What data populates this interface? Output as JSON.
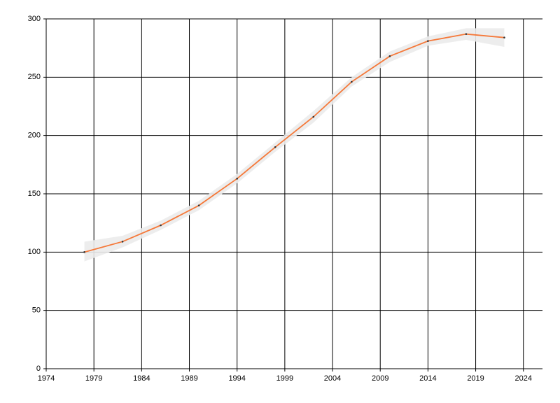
{
  "chart_data": {
    "type": "line",
    "x": [
      1978,
      1982,
      1986,
      1990,
      1994,
      1998,
      2002,
      2006,
      2010,
      2014,
      2018,
      2022
    ],
    "values": [
      100,
      109,
      123,
      140,
      163,
      190,
      216,
      246,
      268,
      281,
      287,
      284
    ],
    "color": "#f5793a",
    "band": {
      "lower": [
        92,
        104,
        119,
        136,
        159,
        186,
        211,
        242,
        263,
        277,
        282,
        276
      ],
      "upper": [
        109,
        114,
        127,
        144,
        167,
        194,
        221,
        250,
        272,
        285,
        292,
        292
      ],
      "color": "#ebebeb"
    },
    "xlim": [
      1974,
      2026
    ],
    "xticks": [
      1974,
      1979,
      1984,
      1989,
      1994,
      1999,
      2004,
      2009,
      2014,
      2019,
      2024
    ],
    "ylim": [
      0,
      300
    ],
    "yticks": [
      0,
      50,
      100,
      150,
      200,
      250,
      300
    ],
    "grid": true
  }
}
